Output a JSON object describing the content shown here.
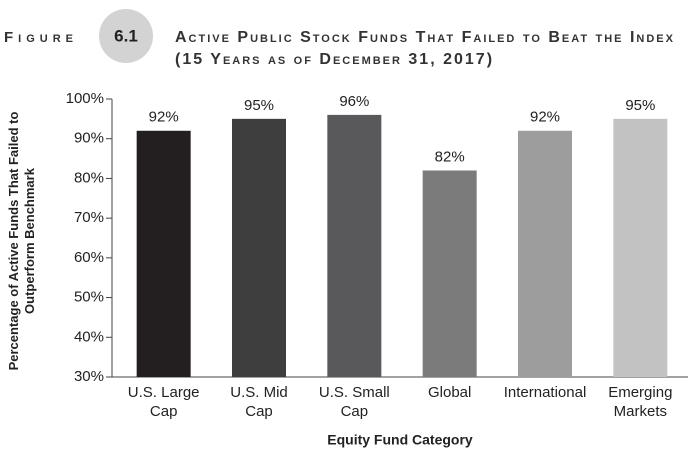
{
  "chart_data": {
    "type": "bar",
    "figure_label": "Figure",
    "figure_number": "6.1",
    "title": "Active Public Stock Funds That Failed to Beat the Index",
    "subtitle": "(15 Years as of December 31, 2017)",
    "ylabel": "Percentage of Active Funds That Failed to Outperform Benchmark",
    "xlabel": "Equity Fund Category",
    "categories": [
      "U.S. Large Cap",
      "U.S. Mid Cap",
      "U.S. Small Cap",
      "Global",
      "International",
      "Emerging Markets"
    ],
    "values": [
      92,
      95,
      96,
      82,
      92,
      95
    ],
    "value_labels": [
      "92%",
      "95%",
      "96%",
      "82%",
      "92%",
      "95%"
    ],
    "colors": [
      "#231f20",
      "#3e3e3f",
      "#59595b",
      "#7b7b7c",
      "#9d9d9e",
      "#c2c2c3"
    ],
    "ylim": [
      30,
      100
    ],
    "yticks": [
      {
        "value": 30,
        "label": "30%"
      },
      {
        "value": 40,
        "label": "40%"
      },
      {
        "value": 50,
        "label": "50%"
      },
      {
        "value": 60,
        "label": "60%"
      },
      {
        "value": 70,
        "label": "70%"
      },
      {
        "value": 80,
        "label": "80%"
      },
      {
        "value": 90,
        "label": "90%"
      },
      {
        "value": 100,
        "label": "100%"
      }
    ],
    "grid": false
  }
}
